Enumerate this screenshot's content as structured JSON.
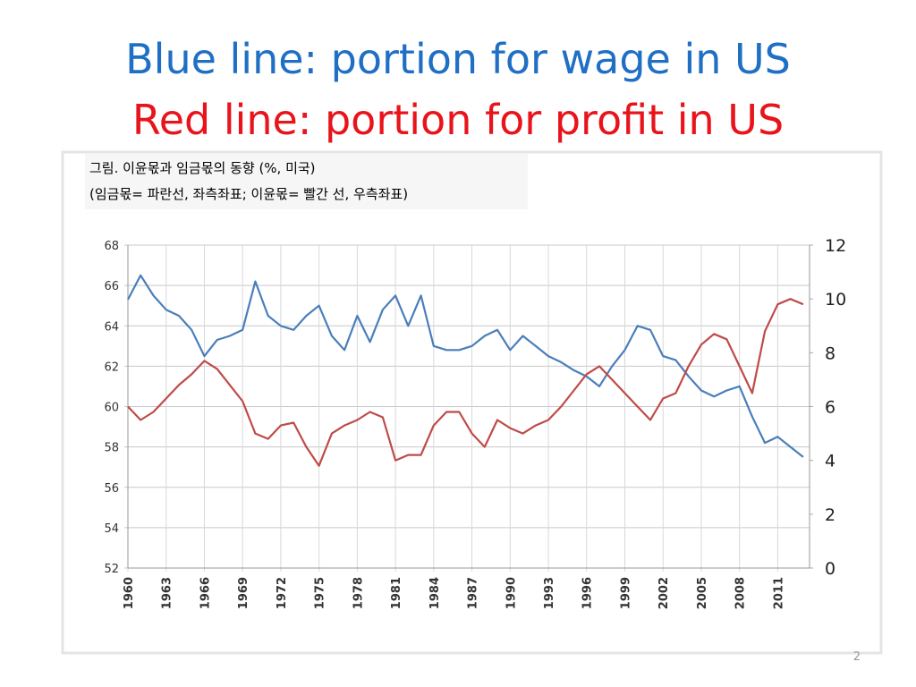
{
  "slide": {
    "title_lines": [
      {
        "text": "Blue line: portion for wage in US",
        "color": "#1f6fc5"
      },
      {
        "text": "Red line: portion for profit in US",
        "color": "#e8131b"
      }
    ],
    "page_number": "2"
  },
  "chart_data": {
    "type": "line",
    "title": "그림. 이윤몫과 임금몫의 동향 (%, 미국)",
    "subtitle": "(임금몫= 파란선, 좌측좌표; 이윤몫= 빨간 선, 우측좌표)",
    "x": [
      1960,
      1961,
      1962,
      1963,
      1964,
      1965,
      1966,
      1967,
      1968,
      1969,
      1970,
      1971,
      1972,
      1973,
      1974,
      1975,
      1976,
      1977,
      1978,
      1979,
      1980,
      1981,
      1982,
      1983,
      1984,
      1985,
      1986,
      1987,
      1988,
      1989,
      1990,
      1991,
      1992,
      1993,
      1994,
      1995,
      1996,
      1997,
      1998,
      1999,
      2000,
      2001,
      2002,
      2003,
      2004,
      2005,
      2006,
      2007,
      2008,
      2009,
      2010,
      2011,
      2012,
      2013
    ],
    "series": [
      {
        "name": "임금몫",
        "color": "#4a7ebb",
        "axis": "y",
        "values": [
          65.3,
          66.5,
          65.5,
          64.8,
          64.5,
          63.8,
          62.5,
          63.3,
          63.5,
          63.8,
          66.2,
          64.5,
          64.0,
          63.8,
          64.5,
          65.0,
          63.5,
          62.8,
          64.5,
          63.2,
          64.8,
          65.5,
          64.0,
          65.5,
          63.0,
          62.8,
          62.8,
          63.0,
          63.5,
          63.8,
          62.8,
          63.5,
          63.0,
          62.5,
          62.2,
          61.8,
          61.5,
          61.0,
          62.0,
          62.8,
          64.0,
          63.8,
          62.5,
          62.3,
          61.5,
          60.8,
          60.5,
          60.8,
          61.0,
          59.5,
          58.2,
          58.5,
          58.0,
          57.5
        ]
      },
      {
        "name": "이윤몫",
        "color": "#be4b48",
        "axis": "y2",
        "values": [
          6.0,
          5.5,
          5.8,
          6.3,
          6.8,
          7.2,
          7.7,
          7.4,
          6.8,
          6.2,
          5.0,
          4.8,
          5.3,
          5.4,
          4.5,
          3.8,
          5.0,
          5.3,
          5.5,
          5.8,
          5.6,
          4.0,
          4.2,
          4.2,
          5.3,
          5.8,
          5.8,
          5.0,
          4.5,
          5.5,
          5.2,
          5.0,
          5.3,
          5.5,
          6.0,
          6.6,
          7.2,
          7.5,
          7.0,
          6.5,
          6.0,
          5.5,
          6.3,
          6.5,
          7.5,
          8.3,
          8.7,
          8.5,
          7.5,
          6.5,
          8.8,
          9.8,
          10.0,
          9.8
        ]
      }
    ],
    "xlim": [
      1960,
      2013.5
    ],
    "xticks": [
      1960,
      1963,
      1966,
      1969,
      1972,
      1975,
      1978,
      1981,
      1984,
      1987,
      1990,
      1993,
      1996,
      1999,
      2002,
      2005,
      2008,
      2011
    ],
    "ylim": [
      52,
      68
    ],
    "yticks": [
      52,
      54,
      56,
      58,
      60,
      62,
      64,
      66,
      68
    ],
    "y2lim": [
      0,
      12
    ],
    "y2ticks": [
      0,
      2,
      4,
      6,
      8,
      10,
      12
    ],
    "grid": true
  }
}
